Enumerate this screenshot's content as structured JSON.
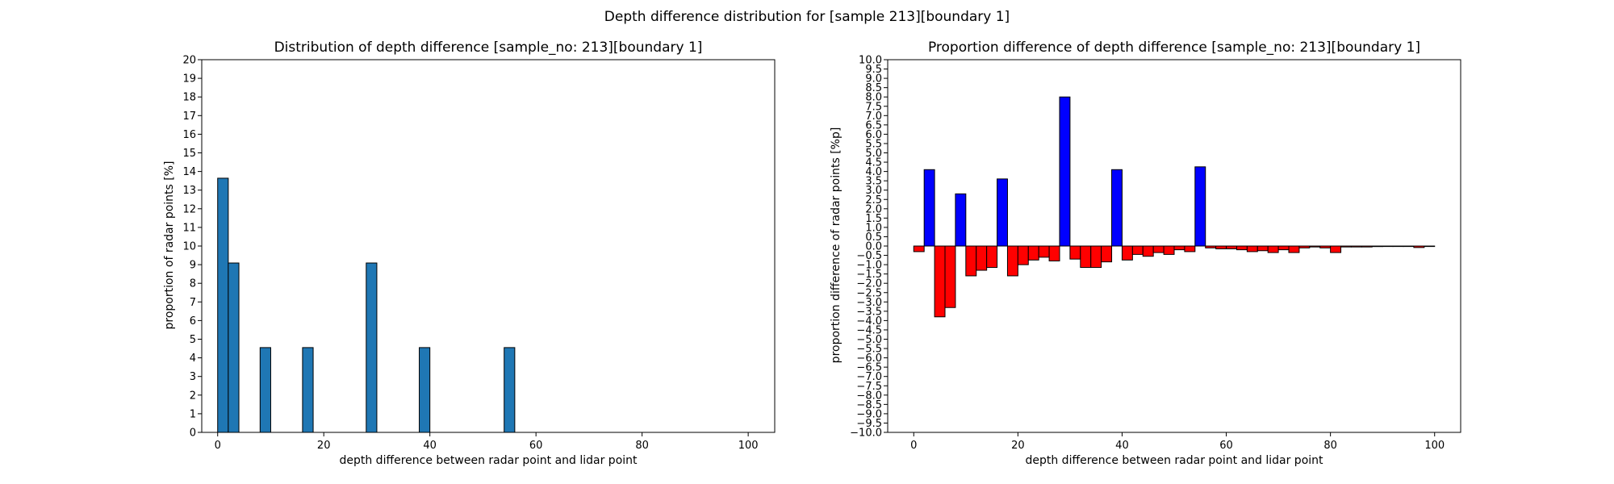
{
  "figure": {
    "suptitle": "Depth difference distribution for [sample 213][boundary 1]"
  },
  "chart_data": [
    {
      "type": "bar",
      "title": "Distribution of depth difference [sample_no: 213][boundary 1]",
      "xlabel": "depth difference between radar point and lidar point",
      "ylabel": "proportion of radar points [%]",
      "xlim": [
        -3,
        105
      ],
      "ylim": [
        0,
        20
      ],
      "xticks": [
        0,
        20,
        40,
        60,
        80,
        100
      ],
      "yticks": [
        0,
        1,
        2,
        3,
        4,
        5,
        6,
        7,
        8,
        9,
        10,
        11,
        12,
        13,
        14,
        15,
        16,
        17,
        18,
        19,
        20
      ],
      "bin_width": 2,
      "bar_color": "#1f77b4",
      "edge_color": "#000000",
      "bars": [
        {
          "x": 0,
          "value": 13.64
        },
        {
          "x": 2,
          "value": 9.09
        },
        {
          "x": 8,
          "value": 4.55
        },
        {
          "x": 16,
          "value": 4.55
        },
        {
          "x": 28,
          "value": 9.09
        },
        {
          "x": 38,
          "value": 4.55
        },
        {
          "x": 54,
          "value": 4.55
        }
      ]
    },
    {
      "type": "bar",
      "title": "Proportion difference of depth difference [sample_no: 213][boundary 1]",
      "xlabel": "depth difference between radar point and lidar point",
      "ylabel": "proportion difference of radar points [%p]",
      "xlim": [
        -5,
        105
      ],
      "ylim": [
        -10,
        10
      ],
      "xticks": [
        0,
        20,
        40,
        60,
        80,
        100
      ],
      "yticks": [
        -10.0,
        -9.5,
        -9.0,
        -8.5,
        -8.0,
        -7.5,
        -7.0,
        -6.5,
        -6.0,
        -5.5,
        -5.0,
        -4.5,
        -4.0,
        -3.5,
        -3.0,
        -2.5,
        -2.0,
        -1.5,
        -1.0,
        -0.5,
        0.0,
        0.5,
        1.0,
        1.5,
        2.0,
        2.5,
        3.0,
        3.5,
        4.0,
        4.5,
        5.0,
        5.5,
        6.0,
        6.5,
        7.0,
        7.5,
        8.0,
        8.5,
        9.0,
        9.5,
        10.0
      ],
      "bin_width": 2,
      "positive_color": "#0000ff",
      "negative_color": "#ff0000",
      "edge_color": "#000000",
      "bars": [
        {
          "x": 0,
          "value": -0.3
        },
        {
          "x": 2,
          "value": 4.1
        },
        {
          "x": 4,
          "value": -3.8
        },
        {
          "x": 6,
          "value": -3.3
        },
        {
          "x": 8,
          "value": 2.8
        },
        {
          "x": 10,
          "value": -1.6
        },
        {
          "x": 12,
          "value": -1.3
        },
        {
          "x": 14,
          "value": -1.15
        },
        {
          "x": 16,
          "value": 3.6
        },
        {
          "x": 18,
          "value": -1.6
        },
        {
          "x": 20,
          "value": -1.0
        },
        {
          "x": 22,
          "value": -0.75
        },
        {
          "x": 24,
          "value": -0.6
        },
        {
          "x": 26,
          "value": -0.8
        },
        {
          "x": 28,
          "value": 8.0
        },
        {
          "x": 30,
          "value": -0.7
        },
        {
          "x": 32,
          "value": -1.15
        },
        {
          "x": 34,
          "value": -1.15
        },
        {
          "x": 36,
          "value": -0.85
        },
        {
          "x": 38,
          "value": 4.1
        },
        {
          "x": 40,
          "value": -0.75
        },
        {
          "x": 42,
          "value": -0.45
        },
        {
          "x": 44,
          "value": -0.55
        },
        {
          "x": 46,
          "value": -0.35
        },
        {
          "x": 48,
          "value": -0.45
        },
        {
          "x": 50,
          "value": -0.2
        },
        {
          "x": 52,
          "value": -0.3
        },
        {
          "x": 54,
          "value": 4.25
        },
        {
          "x": 56,
          "value": -0.1
        },
        {
          "x": 58,
          "value": -0.15
        },
        {
          "x": 60,
          "value": -0.15
        },
        {
          "x": 62,
          "value": -0.2
        },
        {
          "x": 64,
          "value": -0.3
        },
        {
          "x": 66,
          "value": -0.25
        },
        {
          "x": 68,
          "value": -0.35
        },
        {
          "x": 70,
          "value": -0.2
        },
        {
          "x": 72,
          "value": -0.35
        },
        {
          "x": 74,
          "value": -0.1
        },
        {
          "x": 76,
          "value": -0.05
        },
        {
          "x": 78,
          "value": -0.1
        },
        {
          "x": 80,
          "value": -0.35
        },
        {
          "x": 82,
          "value": -0.05
        },
        {
          "x": 84,
          "value": -0.05
        },
        {
          "x": 86,
          "value": -0.05
        },
        {
          "x": 88,
          "value": -0.03
        },
        {
          "x": 90,
          "value": -0.02
        },
        {
          "x": 92,
          "value": -0.02
        },
        {
          "x": 94,
          "value": -0.02
        },
        {
          "x": 96,
          "value": -0.08
        },
        {
          "x": 98,
          "value": -0.02
        }
      ]
    }
  ]
}
